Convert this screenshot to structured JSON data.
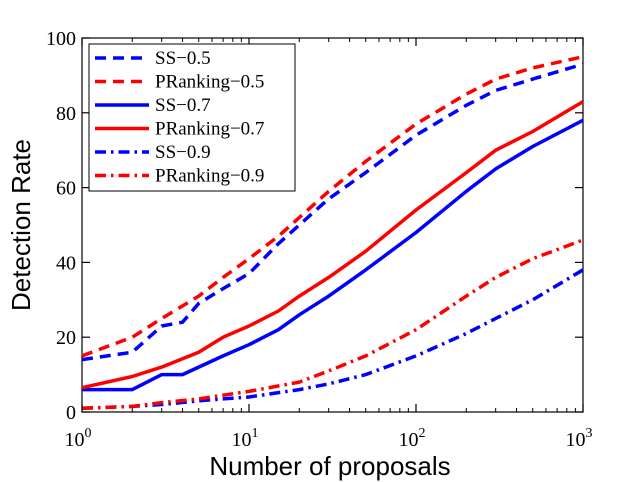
{
  "chart_data": {
    "type": "line",
    "xscale": "log",
    "xlim": [
      1,
      1000
    ],
    "ylim": [
      0,
      100
    ],
    "xlabel": "Number of proposals",
    "ylabel": "Detection Rate",
    "xticks": [
      {
        "base": "10",
        "exp": "0"
      },
      {
        "base": "10",
        "exp": "1"
      },
      {
        "base": "10",
        "exp": "2"
      },
      {
        "base": "10",
        "exp": "3"
      }
    ],
    "yticks": [
      "0",
      "20",
      "40",
      "60",
      "80",
      "100"
    ],
    "legend_position": "top-left",
    "series": [
      {
        "name": "SS−0.5",
        "color": "#0000ff",
        "style": "dashed",
        "x": [
          1,
          2,
          3,
          4,
          5,
          7,
          10,
          15,
          20,
          30,
          50,
          100,
          200,
          300,
          500,
          1000
        ],
        "y": [
          14,
          16,
          23,
          24,
          29,
          33,
          37,
          45,
          50,
          57,
          64,
          74,
          82,
          86,
          89,
          93
        ]
      },
      {
        "name": "PRanking−0.5",
        "color": "#ff0000",
        "style": "dashed",
        "x": [
          1,
          2,
          3,
          5,
          7,
          10,
          15,
          20,
          30,
          50,
          100,
          200,
          300,
          500,
          1000
        ],
        "y": [
          15,
          20,
          25,
          31,
          36,
          41,
          47,
          52,
          59,
          67,
          77,
          85,
          89,
          92,
          95
        ]
      },
      {
        "name": "SS−0.7",
        "color": "#0000ff",
        "style": "solid",
        "x": [
          1,
          2,
          3,
          4,
          5,
          7,
          10,
          15,
          20,
          30,
          50,
          100,
          200,
          300,
          500,
          1000
        ],
        "y": [
          6,
          6,
          10,
          10,
          12,
          15,
          18,
          22,
          26,
          31,
          38,
          48,
          59,
          65,
          71,
          78
        ]
      },
      {
        "name": "PRanking−0.7",
        "color": "#ff0000",
        "style": "solid",
        "x": [
          1,
          2,
          3,
          5,
          7,
          10,
          15,
          20,
          30,
          50,
          100,
          200,
          300,
          500,
          1000
        ],
        "y": [
          6.5,
          9.5,
          12,
          16,
          20,
          23,
          27,
          31,
          36,
          43,
          54,
          64,
          70,
          75,
          83
        ]
      },
      {
        "name": "SS−0.9",
        "color": "#0000ff",
        "style": "dashdot",
        "x": [
          1,
          2,
          3,
          5,
          7,
          10,
          20,
          30,
          50,
          100,
          200,
          300,
          500,
          1000
        ],
        "y": [
          1,
          1.5,
          2,
          3,
          3.5,
          4,
          6,
          7.5,
          10,
          15,
          21,
          25,
          30,
          38
        ]
      },
      {
        "name": "PRanking−0.9",
        "color": "#ff0000",
        "style": "dashdot",
        "x": [
          1,
          2,
          3,
          5,
          7,
          10,
          20,
          30,
          50,
          100,
          200,
          300,
          500,
          1000
        ],
        "y": [
          1,
          1.5,
          2.5,
          3.5,
          4.5,
          5.5,
          8,
          11,
          15,
          22,
          31,
          36,
          41,
          46
        ]
      }
    ]
  }
}
